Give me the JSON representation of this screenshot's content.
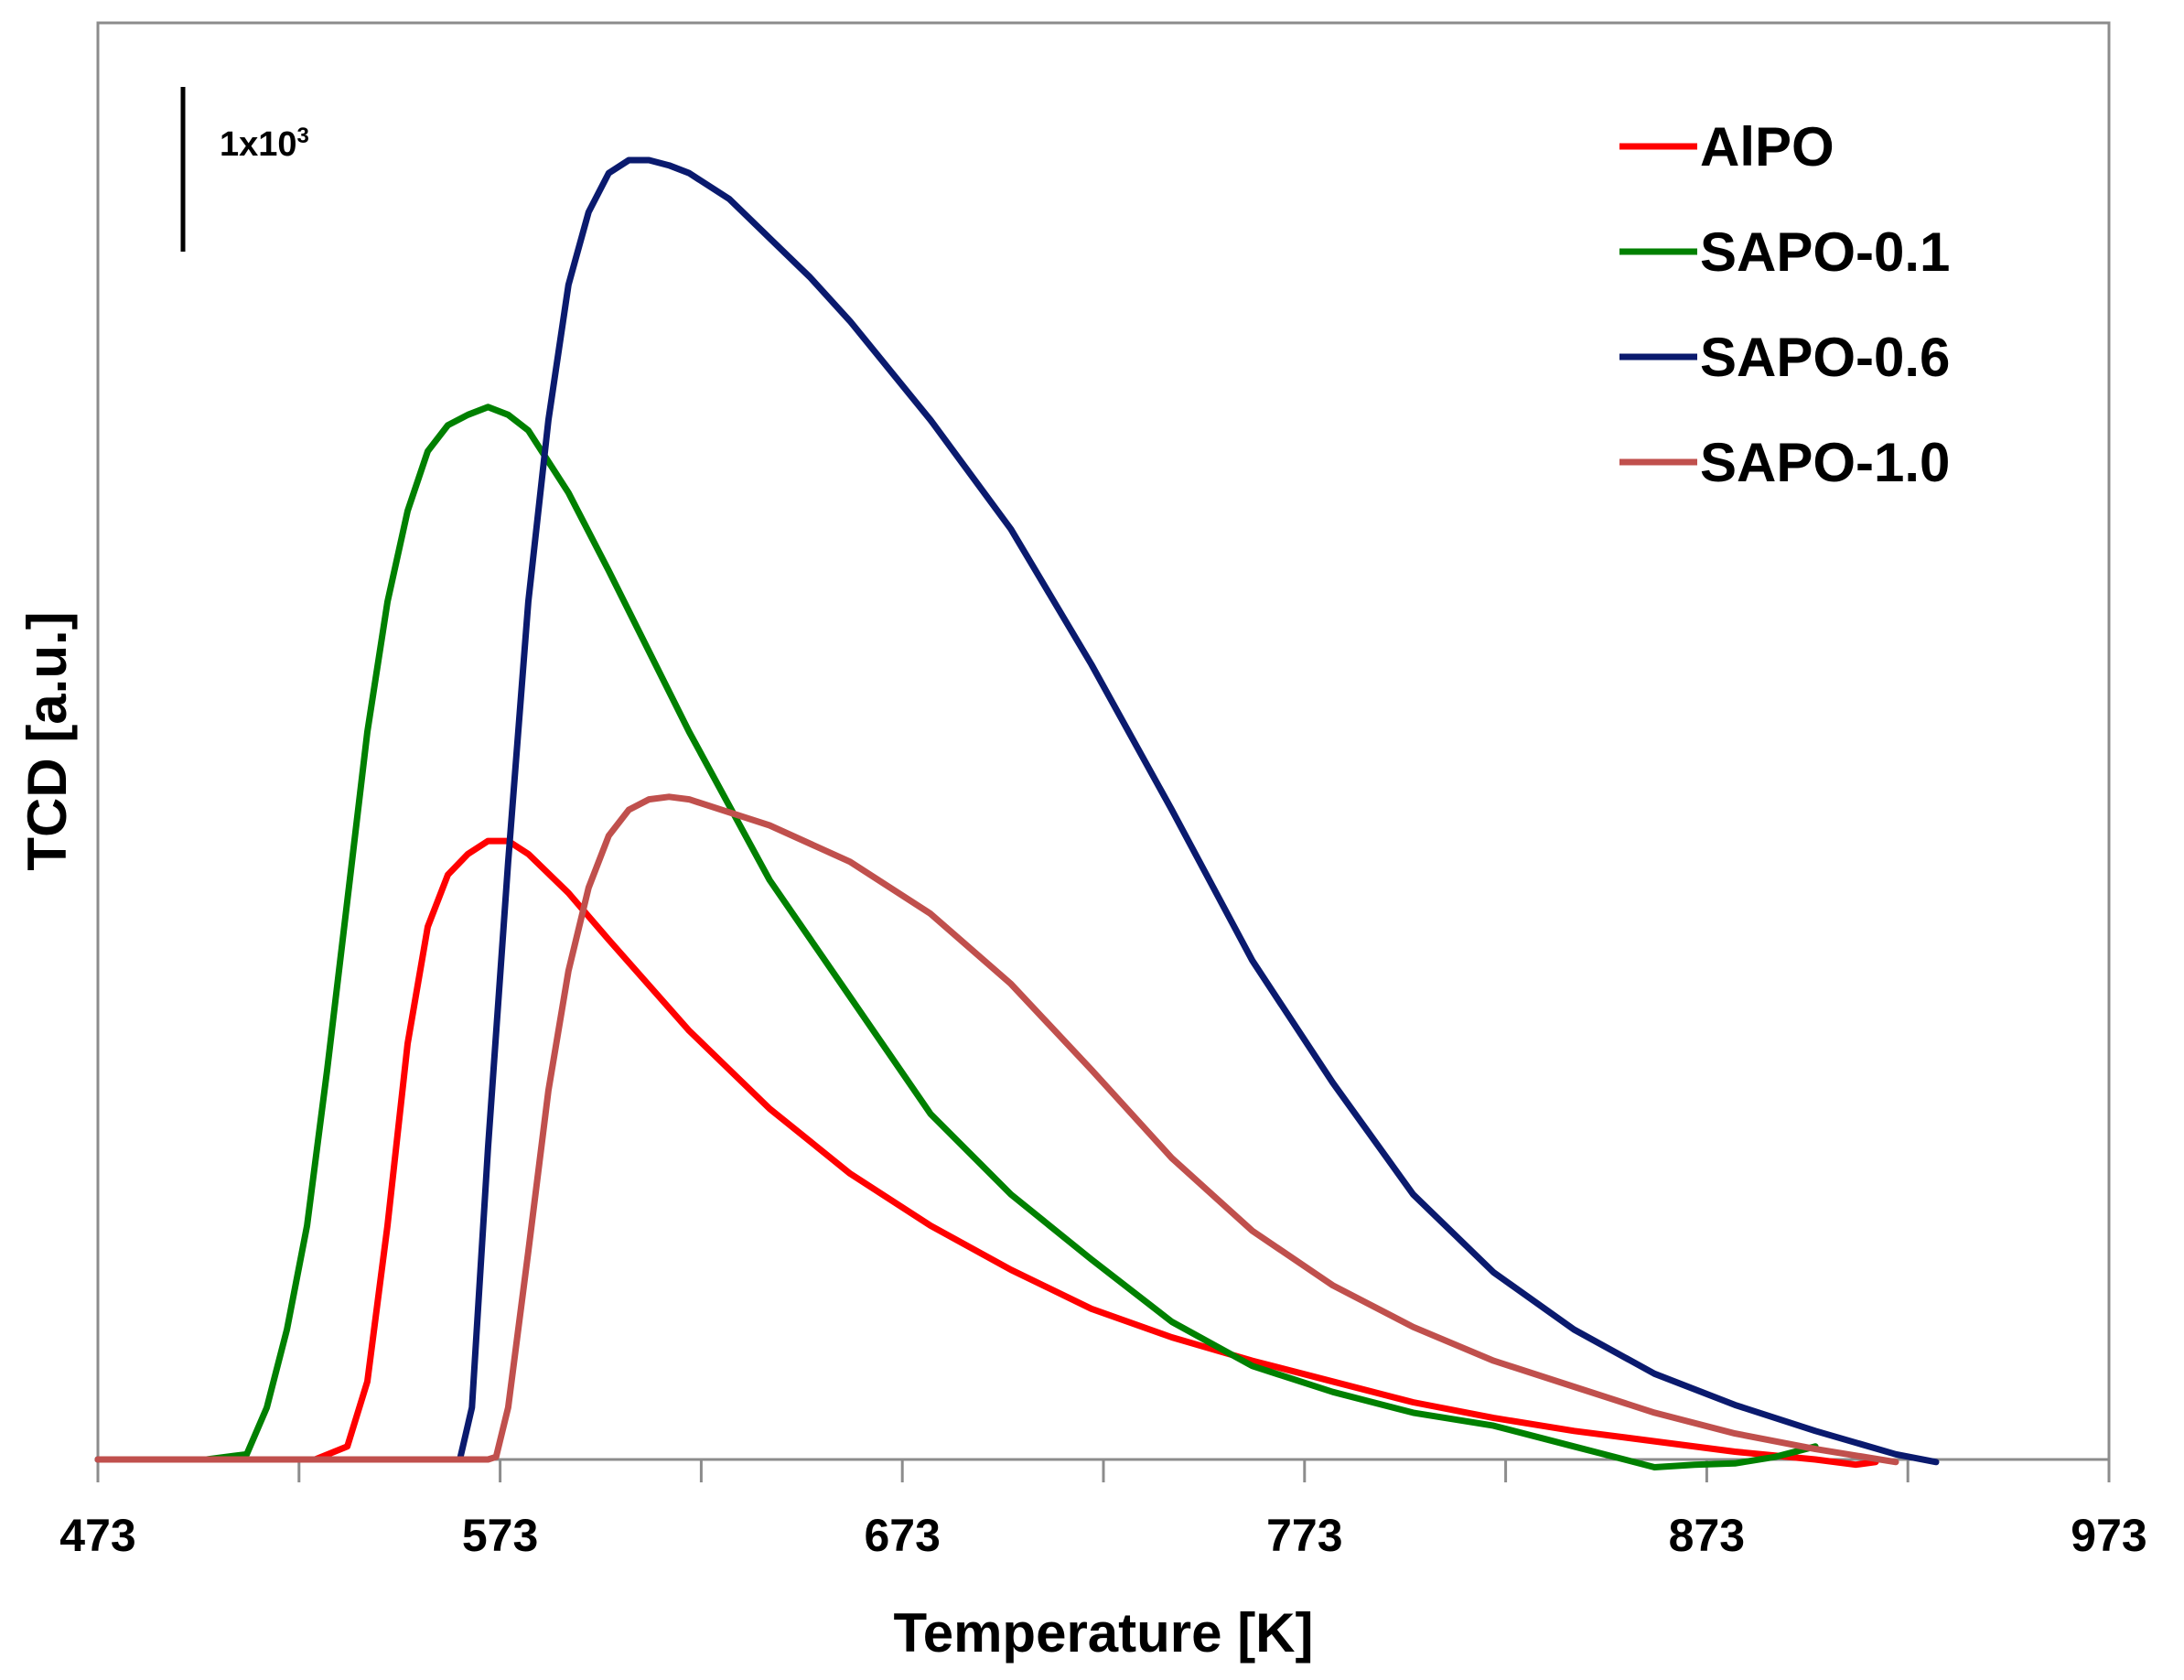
{
  "chart_data": {
    "type": "line",
    "title": "",
    "xlabel": "Temperature [K]",
    "ylabel": "TCD [a.u.]",
    "xlim": [
      473,
      973
    ],
    "x_ticks": [
      473,
      573,
      673,
      773,
      873,
      973
    ],
    "x_tick_labels": [
      "473",
      "573",
      "673",
      "773",
      "873",
      "973"
    ],
    "ylim": [
      0,
      5000
    ],
    "y_tick_labels": [],
    "grid": false,
    "legend_position": "top-right",
    "scale_bar": {
      "base": "1x10",
      "exponent": "3",
      "value": 1000
    },
    "series": [
      {
        "name": "AlPO",
        "color": "#ff0000",
        "x": [
          473,
          500,
          530,
          527,
          535,
          540,
          545,
          550,
          555,
          560,
          565,
          570,
          575,
          580,
          590,
          600,
          620,
          640,
          660,
          680,
          700,
          720,
          740,
          760,
          780,
          800,
          820,
          840,
          860,
          880,
          900,
          910,
          915
        ],
        "y": [
          0,
          0,
          0,
          0,
          50,
          300,
          900,
          1600,
          2050,
          2250,
          2330,
          2380,
          2380,
          2330,
          2180,
          2000,
          1650,
          1350,
          1100,
          900,
          730,
          580,
          470,
          380,
          300,
          220,
          160,
          110,
          70,
          30,
          0,
          -20,
          -10
        ]
      },
      {
        "name": "SAPO-0.1",
        "color": "#008000",
        "x": [
          473,
          500,
          510,
          515,
          520,
          525,
          530,
          535,
          540,
          545,
          550,
          555,
          560,
          565,
          570,
          575,
          580,
          590,
          600,
          620,
          640,
          660,
          680,
          700,
          720,
          740,
          760,
          780,
          800,
          820,
          840,
          860,
          870,
          880,
          890,
          900
        ],
        "y": [
          0,
          0,
          20,
          200,
          500,
          900,
          1500,
          2150,
          2800,
          3300,
          3650,
          3880,
          3980,
          4020,
          4050,
          4020,
          3960,
          3720,
          3420,
          2800,
          2230,
          1780,
          1330,
          1020,
          770,
          530,
          360,
          260,
          180,
          130,
          50,
          -30,
          -20,
          -15,
          10,
          50
        ]
      },
      {
        "name": "SAPO-0.6",
        "color": "#0a1a6e",
        "x": [
          473,
          550,
          563,
          566,
          570,
          575,
          580,
          585,
          590,
          595,
          600,
          605,
          610,
          615,
          620,
          630,
          640,
          650,
          660,
          680,
          700,
          720,
          740,
          760,
          780,
          800,
          820,
          840,
          860,
          880,
          900,
          920,
          930
        ],
        "y": [
          0,
          0,
          0,
          200,
          1200,
          2300,
          3300,
          4000,
          4520,
          4800,
          4950,
          5000,
          5000,
          4980,
          4950,
          4850,
          4700,
          4550,
          4380,
          4000,
          3580,
          3060,
          2500,
          1920,
          1450,
          1020,
          720,
          500,
          330,
          210,
          110,
          20,
          -10
        ]
      },
      {
        "name": "SAPO-1.0",
        "color": "#c0504d",
        "x": [
          473,
          570,
          572,
          575,
          580,
          585,
          590,
          595,
          600,
          605,
          610,
          615,
          620,
          640,
          660,
          680,
          700,
          720,
          740,
          760,
          780,
          800,
          820,
          840,
          860,
          880,
          900,
          920
        ],
        "y": [
          0,
          0,
          10,
          200,
          800,
          1420,
          1880,
          2200,
          2400,
          2500,
          2540,
          2550,
          2540,
          2440,
          2300,
          2100,
          1830,
          1500,
          1160,
          880,
          670,
          510,
          380,
          280,
          180,
          100,
          40,
          -10
        ]
      }
    ]
  }
}
